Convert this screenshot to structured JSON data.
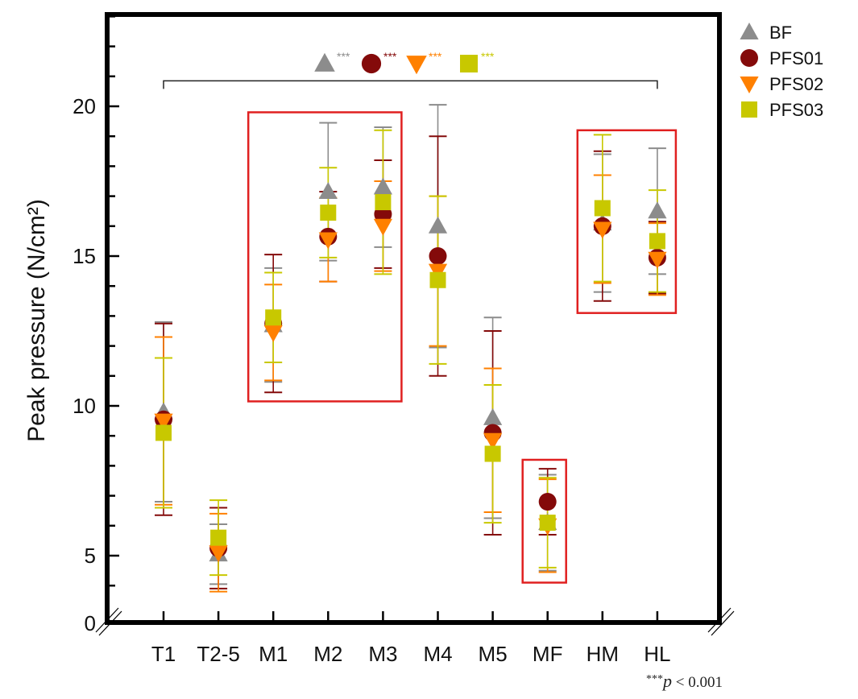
{
  "chart_data": {
    "type": "scatter",
    "subtype": "dot plot with error bars",
    "title": "",
    "xlabel": "",
    "ylabel": "Peak pressure (N/cm²)",
    "categories": [
      "T1",
      "T2-5",
      "M1",
      "M2",
      "M3",
      "M4",
      "M5",
      "MF",
      "HM",
      "HL"
    ],
    "ylim": [
      2.8,
      23.1
    ],
    "y_axis_break": true,
    "yticks": [
      5,
      10,
      15,
      20
    ],
    "ytick_labels": [
      "5",
      "10",
      "15",
      "20"
    ],
    "y_bottom_label": "0",
    "grid": false,
    "legend_position": "right outside, top",
    "series": [
      {
        "name": "BF",
        "marker": "triangle-up",
        "color": "#8c8c8c",
        "values": [
          9.8,
          5.05,
          12.7,
          17.15,
          17.3,
          16.0,
          9.6,
          6.1,
          16.1,
          16.5
        ],
        "errors": [
          3.0,
          1.0,
          1.9,
          2.3,
          2.0,
          4.05,
          3.35,
          1.6,
          2.3,
          2.1
        ]
      },
      {
        "name": "PFS01",
        "marker": "circle",
        "color": "#840a0a",
        "values": [
          9.55,
          5.25,
          12.75,
          15.65,
          16.4,
          15.0,
          9.1,
          6.8,
          16.0,
          14.95
        ],
        "errors": [
          3.2,
          1.35,
          2.3,
          1.5,
          1.8,
          4.0,
          3.4,
          1.1,
          2.5,
          1.2
        ]
      },
      {
        "name": "PFS02",
        "marker": "triangle-down",
        "color": "#ff8000",
        "values": [
          9.5,
          5.1,
          12.45,
          15.55,
          16.0,
          14.5,
          8.85,
          6.0,
          15.9,
          14.9
        ],
        "errors": [
          2.8,
          1.3,
          1.6,
          1.4,
          1.5,
          2.5,
          2.4,
          1.55,
          1.8,
          1.2
        ]
      },
      {
        "name": "PFS03",
        "marker": "square",
        "color": "#c8c800",
        "values": [
          9.1,
          5.6,
          12.95,
          16.45,
          16.8,
          14.2,
          8.4,
          6.1,
          16.6,
          15.5
        ],
        "errors": [
          2.5,
          1.25,
          1.5,
          1.5,
          2.4,
          2.8,
          2.3,
          1.5,
          2.45,
          1.7
        ]
      }
    ],
    "highlight_boxes": [
      {
        "from": "M1",
        "to": "M3",
        "y": [
          10.15,
          19.8
        ],
        "color": "#e02020"
      },
      {
        "from": "MF",
        "to": "MF",
        "y": [
          4.1,
          8.2
        ],
        "color": "#e02020"
      },
      {
        "from": "HM",
        "to": "HL",
        "y": [
          13.1,
          19.2
        ],
        "color": "#e02020"
      }
    ],
    "significance": {
      "from": "T1",
      "to": "HL",
      "y": 20.85,
      "marks": [
        {
          "series": "BF",
          "stars": "***"
        },
        {
          "series": "PFS01",
          "stars": "***"
        },
        {
          "series": "PFS02",
          "stars": "***"
        },
        {
          "series": "PFS03",
          "stars": "***"
        }
      ]
    },
    "footnote": {
      "stars": "***",
      "p": "p",
      "rest": " < 0.001"
    }
  }
}
